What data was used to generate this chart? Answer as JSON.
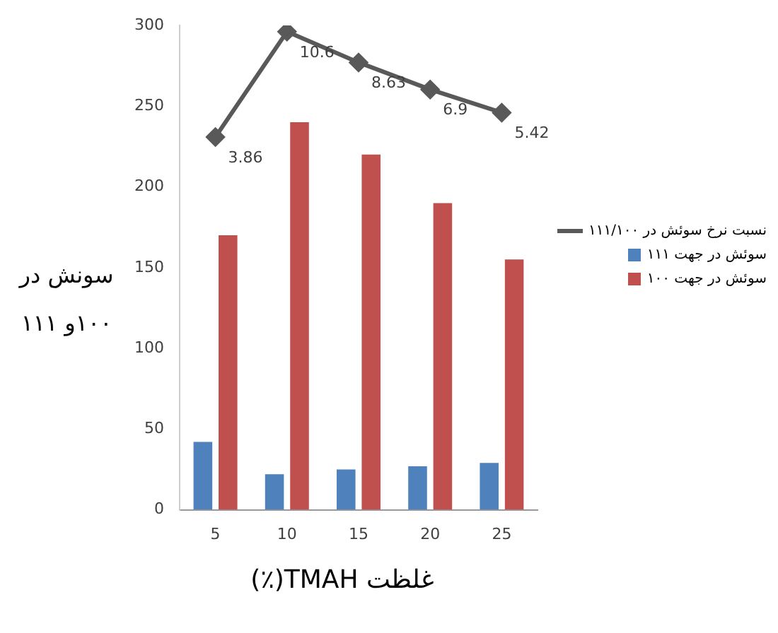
{
  "chart_data": {
    "type": "bar",
    "categories": [
      "5",
      "10",
      "15",
      "20",
      "25"
    ],
    "xlabel": "غلظت TMAH(٪)",
    "ylabel": "سونش در ۱۰۰و ۱۱۱",
    "ylim": [
      0,
      300
    ],
    "yticks": [
      0,
      50,
      100,
      150,
      200,
      250,
      300
    ],
    "y2lim": [
      -20,
      11
    ],
    "grid": false,
    "legend": "right",
    "series": [
      {
        "name": "نسبت نرخ سوئش در ۱۱۱/۱۰۰",
        "type": "line",
        "axis": "y2",
        "color": "#595959",
        "marker": "diamond",
        "values": [
          3.86,
          10.6,
          8.63,
          6.9,
          5.42
        ],
        "value_labels": [
          "3.86",
          "10.6",
          "8.63",
          "6.9",
          "5.42"
        ]
      },
      {
        "name": "سوئش در جهت ۱۱۱",
        "color": "#4f81bd",
        "values": [
          42,
          22,
          25,
          27,
          29
        ]
      },
      {
        "name": "سوئش در جهت ۱۰۰",
        "color": "#c0504d",
        "values": [
          170,
          240,
          220,
          190,
          155
        ]
      }
    ]
  }
}
